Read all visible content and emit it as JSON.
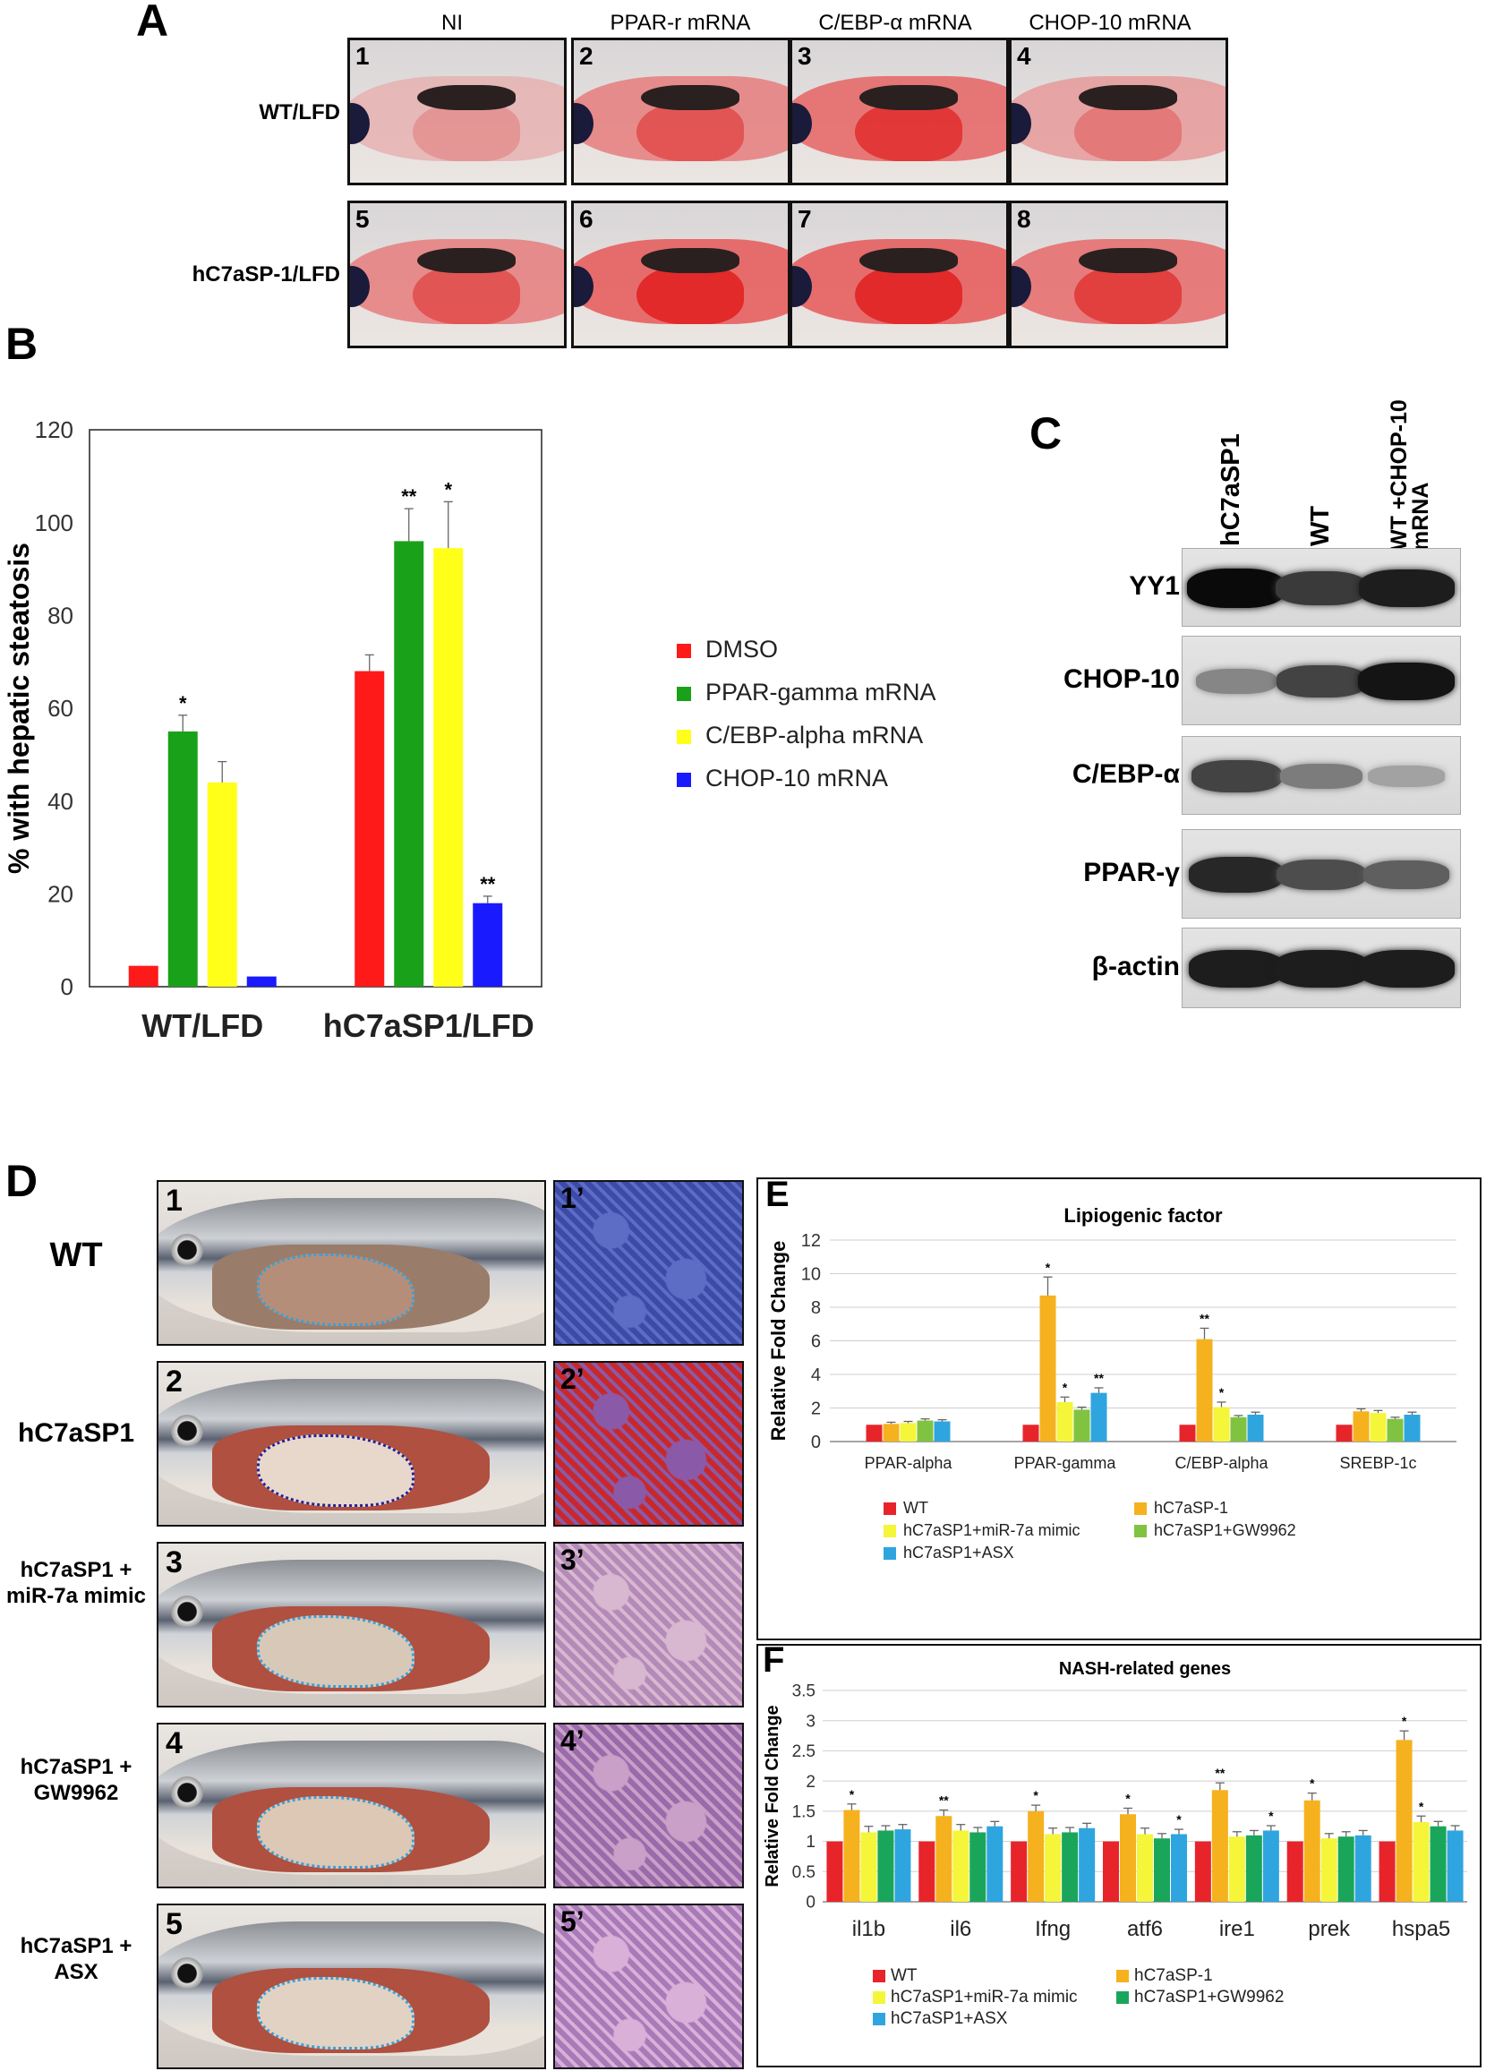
{
  "panelA": {
    "letter": "A",
    "columns": [
      "NI",
      "PPAR-r mRNA",
      "C/EBP-α  mRNA",
      "CHOP-10 mRNA"
    ],
    "rows": [
      "WT/LFD",
      "hC7aSP-1/LFD"
    ],
    "numbers": [
      "1",
      "2",
      "3",
      "4",
      "5",
      "6",
      "7",
      "8"
    ]
  },
  "panelB": {
    "letter": "B",
    "chart_data": {
      "type": "bar",
      "categories": [
        "WT/LFD",
        "hC7aSP1/LFD"
      ],
      "ylabel": "% with hepatic steatosis",
      "ylim": [
        0,
        120
      ],
      "yticks": [
        0,
        20,
        40,
        60,
        80,
        100,
        120
      ],
      "series": [
        {
          "name": "DMSO",
          "values": [
            4.5,
            68
          ],
          "errors": [
            0,
            3.5
          ],
          "sig": [
            "",
            ""
          ],
          "color": "#ff1a1a"
        },
        {
          "name": "PPAR-gamma mRNA",
          "values": [
            55,
            96
          ],
          "errors": [
            3.5,
            7
          ],
          "sig": [
            "*",
            "**"
          ],
          "color": "#1aa11a"
        },
        {
          "name": "C/EBP-alpha mRNA",
          "values": [
            44,
            94.5
          ],
          "errors": [
            4.5,
            10
          ],
          "sig": [
            "",
            "*"
          ],
          "color": "#ffff1a"
        },
        {
          "name": "CHOP-10 mRNA",
          "values": [
            2.2,
            18
          ],
          "errors": [
            0,
            1.5
          ],
          "sig": [
            "",
            "**"
          ],
          "color": "#1a1aff"
        }
      ]
    }
  },
  "panelC": {
    "letter": "C",
    "lanes": [
      "hC7aSP1",
      "WT",
      "WT +CHOP-10 mRNA"
    ],
    "bands": [
      {
        "label": "YY1",
        "intensity": [
          1.0,
          0.75,
          0.9
        ]
      },
      {
        "label": "CHOP-10",
        "intensity": [
          0.35,
          0.7,
          0.95
        ]
      },
      {
        "label": "C/EBP-α",
        "intensity": [
          0.7,
          0.4,
          0.2
        ]
      },
      {
        "label": "PPAR-γ",
        "intensity": [
          0.85,
          0.65,
          0.55
        ]
      },
      {
        "label": "β-actin",
        "intensity": [
          0.9,
          0.9,
          0.9
        ]
      }
    ]
  },
  "panelD": {
    "letter": "D",
    "rows": [
      {
        "label": "WT",
        "num": "1",
        "hnum": "1’"
      },
      {
        "label": "hC7aSP1",
        "num": "2",
        "hnum": "2’"
      },
      {
        "label": "hC7aSP1 + miR-7a mimic",
        "num": "3",
        "hnum": "3’"
      },
      {
        "label": "hC7aSP1 + GW9962",
        "num": "4",
        "hnum": "4’"
      },
      {
        "label": "hC7aSP1 + ASX",
        "num": "5",
        "hnum": "5’"
      }
    ]
  },
  "panelE": {
    "letter": "E",
    "chart_data": {
      "type": "bar",
      "title": "Lipiogenic factor",
      "ylabel": "Relative Fold Change",
      "ylim": [
        0,
        12
      ],
      "yticks": [
        0,
        2,
        4,
        6,
        8,
        10,
        12
      ],
      "categories": [
        "PPAR-alpha",
        "PPAR-gamma",
        "C/EBP-alpha",
        "SREBP-1c"
      ],
      "series": [
        {
          "name": "WT",
          "values": [
            1,
            1,
            1,
            1
          ],
          "errors": [
            0,
            0,
            0,
            0
          ],
          "sig": [
            "",
            "",
            "",
            ""
          ],
          "color": "#e8242b"
        },
        {
          "name": "hC7aSP-1",
          "values": [
            1.05,
            8.7,
            6.1,
            1.8
          ],
          "errors": [
            0.1,
            1.1,
            0.65,
            0.15
          ],
          "sig": [
            "",
            "*",
            "**",
            ""
          ],
          "color": "#f5b21e"
        },
        {
          "name": "hC7aSP1+miR-7a mimic",
          "values": [
            1.1,
            2.35,
            2.05,
            1.7
          ],
          "errors": [
            0.1,
            0.3,
            0.3,
            0.15
          ],
          "sig": [
            "",
            "*",
            "*",
            ""
          ],
          "color": "#f5f53a"
        },
        {
          "name": "hC7aSP1+GW9962",
          "values": [
            1.25,
            1.9,
            1.45,
            1.35
          ],
          "errors": [
            0.1,
            0.15,
            0.1,
            0.1
          ],
          "sig": [
            "",
            "",
            "",
            ""
          ],
          "color": "#80c341"
        },
        {
          "name": "hC7aSP1+ASX",
          "values": [
            1.2,
            2.9,
            1.6,
            1.6
          ],
          "errors": [
            0.1,
            0.3,
            0.15,
            0.15
          ],
          "sig": [
            "",
            "**",
            "",
            ""
          ],
          "color": "#2fa5e0"
        }
      ]
    }
  },
  "panelF": {
    "letter": "F",
    "chart_data": {
      "type": "bar",
      "title": "NASH-related genes",
      "ylabel": "Relative Fold Change",
      "ylim": [
        0,
        3.5
      ],
      "yticks": [
        0,
        0.5,
        1,
        1.5,
        2,
        2.5,
        3,
        3.5
      ],
      "categories": [
        "il1b",
        "il6",
        "Ifng",
        "atf6",
        "ire1",
        "prek",
        "hspa5"
      ],
      "series": [
        {
          "name": "WT",
          "values": [
            1,
            1,
            1,
            1,
            1,
            1,
            1
          ],
          "errors": [
            0,
            0,
            0,
            0,
            0,
            0,
            0
          ],
          "sig": [
            "",
            "",
            "",
            "",
            "",
            "",
            ""
          ],
          "color": "#e8242b"
        },
        {
          "name": "hC7aSP-1",
          "values": [
            1.52,
            1.42,
            1.5,
            1.45,
            1.85,
            1.68,
            2.68
          ],
          "errors": [
            0.1,
            0.1,
            0.1,
            0.1,
            0.12,
            0.12,
            0.15
          ],
          "sig": [
            "*",
            "**",
            "*",
            "*",
            "**",
            "*",
            "*"
          ],
          "color": "#f5b21e"
        },
        {
          "name": "hC7aSP1+miR-7a mimic",
          "values": [
            1.15,
            1.18,
            1.12,
            1.12,
            1.08,
            1.05,
            1.32
          ],
          "errors": [
            0.1,
            0.1,
            0.1,
            0.1,
            0.08,
            0.08,
            0.1
          ],
          "sig": [
            "",
            "",
            "",
            "",
            "",
            "",
            "*"
          ],
          "color": "#f5f53a"
        },
        {
          "name": "hC7aSP1+GW9962",
          "values": [
            1.18,
            1.15,
            1.15,
            1.05,
            1.1,
            1.08,
            1.25
          ],
          "errors": [
            0.08,
            0.08,
            0.08,
            0.08,
            0.08,
            0.08,
            0.08
          ],
          "sig": [
            "",
            "",
            "",
            "",
            "",
            "",
            ""
          ],
          "color": "#1aa65a"
        },
        {
          "name": "hC7aSP1+ASX",
          "values": [
            1.2,
            1.25,
            1.22,
            1.12,
            1.18,
            1.1,
            1.18
          ],
          "errors": [
            0.08,
            0.08,
            0.08,
            0.08,
            0.08,
            0.08,
            0.08
          ],
          "sig": [
            "",
            "",
            "",
            "*",
            "*",
            "",
            ""
          ],
          "color": "#2fa5e0"
        }
      ]
    }
  }
}
